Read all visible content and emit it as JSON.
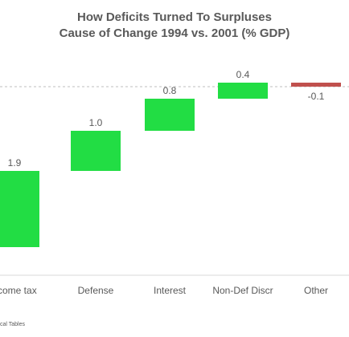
{
  "title": "How Deficits Turned To Surpluses",
  "subtitle": "Cause of Change 1994 vs. 2001 (% GDP)",
  "source_note": "cal Tables",
  "colors": {
    "positive": "#22dd44",
    "negative": "#c0504d",
    "text": "#595959",
    "dash": "#bfbfbf"
  },
  "chart_data": {
    "type": "bar",
    "subtype": "waterfall",
    "categories": [
      "Income tax",
      "Defense",
      "Interest",
      "Non-Def Discr",
      "Other"
    ],
    "category_labels_visible": [
      "ncome tax",
      "Defense",
      "Interest",
      "Non-Def Discr",
      "Other"
    ],
    "values": [
      1.9,
      1.0,
      0.8,
      0.4,
      -0.1
    ],
    "value_labels": [
      "1.9",
      "1.0",
      "0.8",
      "0.4",
      "-0.1"
    ],
    "baseline": 0.0,
    "grid": false,
    "legend": "none"
  }
}
